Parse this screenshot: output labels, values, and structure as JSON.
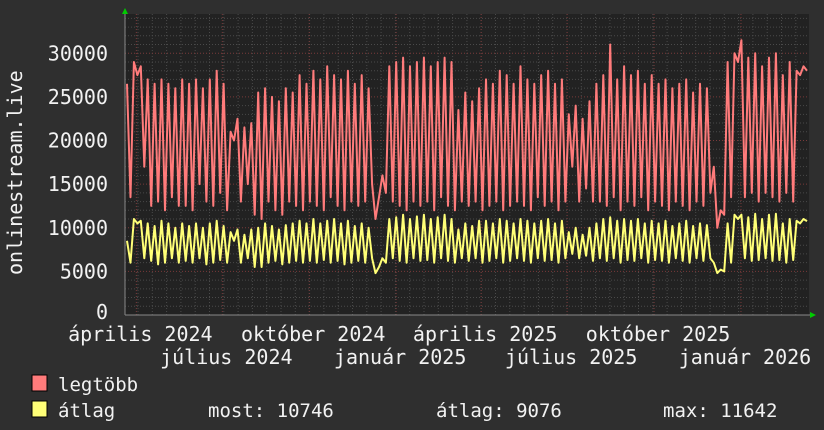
{
  "chart_data": {
    "type": "line",
    "ylabel": "onlinestream.live",
    "ylim": [
      0,
      34500
    ],
    "yticks": [
      "0",
      "5000",
      "10000",
      "15000",
      "20000",
      "25000",
      "30000"
    ],
    "x_range": [
      "2024-03-20",
      "2026-03-14"
    ],
    "xticks": [
      "április 2024",
      "július 2024",
      "október 2024",
      "január 2025",
      "április 2025",
      "július 2025",
      "október 2025",
      "január 2026"
    ],
    "grid": true,
    "legend_placement": "bottom-left",
    "series": [
      {
        "name": "legtöbb",
        "color": "#ff7b7b",
        "values": [
          26500,
          13500,
          29000,
          27500,
          28500,
          17000,
          27000,
          12500,
          26500,
          13000,
          27000,
          12000,
          26500,
          13500,
          26000,
          12500,
          27000,
          12500,
          26500,
          12000,
          27000,
          15000,
          26000,
          13000,
          27000,
          12500,
          28000,
          14000,
          26500,
          12000,
          21000,
          20000,
          22500,
          13000,
          21500,
          15000,
          22000,
          11500,
          25500,
          11000,
          26000,
          13000,
          25000,
          12000,
          24500,
          11500,
          26000,
          13000,
          25500,
          12500,
          27500,
          12000,
          26500,
          13000,
          28000,
          12500,
          27000,
          12000,
          28500,
          13500,
          27500,
          12500,
          27000,
          12000,
          28000,
          13000,
          26500,
          12500,
          27500,
          13000,
          26000,
          15000,
          11000,
          13500,
          16000,
          14000,
          28500,
          13000,
          29000,
          12500,
          29500,
          12000,
          28500,
          13000,
          29000,
          12500,
          29500,
          13000,
          28500,
          12000,
          29000,
          13500,
          29500,
          12500,
          29000,
          12000,
          23500,
          13000,
          25500,
          12500,
          24500,
          13000,
          26000,
          12000,
          27000,
          12500,
          26500,
          13000,
          28000,
          12000,
          27500,
          12500,
          26500,
          13000,
          28500,
          12500,
          27000,
          12000,
          26500,
          13500,
          27500,
          12500,
          28000,
          13000,
          26500,
          12000,
          27000,
          13000,
          23000,
          17000,
          24000,
          13000,
          22500,
          14500,
          24500,
          13000,
          26500,
          13000,
          27500,
          12500,
          31000,
          13500,
          27000,
          12000,
          28500,
          13000,
          27500,
          12500,
          28000,
          13500,
          26500,
          12000,
          27500,
          13000,
          26500,
          12500,
          27000,
          12000,
          26000,
          13000,
          26500,
          12500,
          27000,
          12000,
          25500,
          13000,
          26500,
          12500,
          26000,
          14000,
          17000,
          10000,
          12000,
          11500,
          29000,
          13500,
          30000,
          29000,
          31500,
          13500,
          29500,
          14000,
          30000,
          13000,
          28500,
          14000,
          29500,
          13500,
          30000,
          13000,
          27500,
          14000,
          29000,
          13000,
          28000,
          27500,
          28500,
          28000
        ]
      },
      {
        "name": "átlag",
        "color": "#ffff77",
        "values": [
          8500,
          6000,
          11000,
          10500,
          10800,
          6500,
          10500,
          6200,
          10200,
          5800,
          10800,
          6000,
          10500,
          6500,
          10000,
          6000,
          10500,
          6200,
          10200,
          6000,
          10500,
          6500,
          10000,
          5800,
          10500,
          6000,
          10800,
          6300,
          10200,
          6000,
          9500,
          8500,
          9800,
          6000,
          9200,
          6500,
          9800,
          5500,
          10000,
          5500,
          10500,
          6000,
          10200,
          6200,
          9800,
          5800,
          10300,
          6000,
          10500,
          6200,
          10800,
          6000,
          10500,
          6200,
          11000,
          6000,
          10500,
          6300,
          10800,
          6000,
          11000,
          6200,
          10500,
          5800,
          10800,
          6000,
          10200,
          6200,
          10500,
          6000,
          10000,
          6500,
          4800,
          5500,
          6500,
          6000,
          11000,
          6500,
          11200,
          6200,
          11500,
          6000,
          11000,
          6500,
          11300,
          6200,
          11500,
          6300,
          11000,
          6000,
          11200,
          6500,
          11500,
          6200,
          11000,
          6000,
          9800,
          6500,
          10500,
          6200,
          10200,
          6500,
          10800,
          6000,
          10800,
          6200,
          10500,
          6500,
          11000,
          6000,
          10800,
          6200,
          10500,
          6500,
          11000,
          6200,
          10800,
          6000,
          10500,
          6500,
          10800,
          6200,
          11000,
          6300,
          10500,
          6000,
          10800,
          6500,
          9500,
          7000,
          10000,
          6500,
          9200,
          6800,
          10000,
          6200,
          10500,
          6500,
          11000,
          6200,
          11200,
          6500,
          10800,
          6000,
          11000,
          6300,
          10800,
          6200,
          11000,
          6500,
          10500,
          6000,
          10800,
          6300,
          10500,
          6200,
          10800,
          6000,
          10200,
          6500,
          10500,
          6200,
          10800,
          6000,
          10200,
          6500,
          10500,
          6200,
          10300,
          6500,
          6000,
          4800,
          5200,
          5000,
          10500,
          6000,
          11500,
          11000,
          11500,
          6500,
          11200,
          6200,
          11600,
          6300,
          11000,
          6500,
          11500,
          6200,
          11600,
          6300,
          10500,
          6000,
          11000,
          6300,
          10800,
          10500,
          11000,
          10746
        ]
      }
    ],
    "legend": {
      "max_label": "legtöbb",
      "avg_label": "átlag",
      "stats": {
        "now": "most: 10746",
        "average": "átlag: 9076",
        "max": "max: 11642"
      }
    }
  },
  "colors": {
    "background": "#2f2f2f",
    "plot_background": "#222222",
    "major_grid": "#7a3a3a",
    "minor_grid": "#555555",
    "axis_arrow": "#00cc00"
  }
}
